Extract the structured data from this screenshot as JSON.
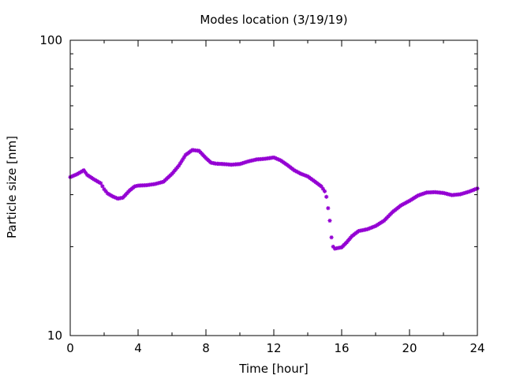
{
  "chart_data": {
    "type": "scatter",
    "title": "Modes location (3/19/19)",
    "xlabel": "Time [hour]",
    "ylabel": "Particle size [nm]",
    "xlim": [
      0,
      24
    ],
    "ylim": [
      10,
      100
    ],
    "yscale": "log",
    "x_ticks": [
      0,
      4,
      8,
      12,
      16,
      20,
      24
    ],
    "x_tick_labels": [
      "0",
      "4",
      "8",
      "12",
      "16",
      "20",
      "24"
    ],
    "y_tick_labels": [
      {
        "value": 100,
        "label": "100"
      },
      {
        "value": 10,
        "label": "10"
      }
    ],
    "grid": false,
    "series": [
      {
        "color": "#9400d3",
        "marker": "asterisk",
        "x": [
          0.0,
          0.4,
          0.8,
          1.0,
          1.4,
          1.8,
          2.0,
          2.2,
          2.5,
          2.8,
          3.1,
          3.5,
          3.8,
          4.0,
          4.5,
          5.0,
          5.5,
          6.0,
          6.4,
          6.8,
          7.2,
          7.6,
          8.0,
          8.3,
          8.6,
          9.0,
          9.5,
          10.0,
          10.5,
          11.0,
          11.5,
          12.0,
          12.4,
          12.8,
          13.2,
          13.6,
          14.0,
          14.4,
          14.8,
          15.0,
          15.1,
          15.2,
          15.3,
          15.4,
          15.5,
          15.6,
          15.8,
          16.0,
          16.3,
          16.6,
          17.0,
          17.5,
          18.0,
          18.5,
          19.0,
          19.5,
          20.0,
          20.5,
          21.0,
          21.5,
          22.0,
          22.5,
          23.0,
          23.5,
          24.0
        ],
        "y": [
          34.4,
          35.2,
          36.3,
          35.0,
          33.8,
          32.8,
          31.3,
          30.3,
          29.6,
          29.1,
          29.3,
          31.0,
          32.0,
          32.2,
          32.3,
          32.6,
          33.2,
          35.3,
          37.6,
          40.9,
          42.5,
          42.2,
          39.9,
          38.5,
          38.2,
          38.1,
          37.9,
          38.1,
          38.9,
          39.5,
          39.7,
          40.1,
          39.2,
          37.8,
          36.3,
          35.3,
          34.6,
          33.3,
          32.0,
          30.8,
          29.5,
          27.0,
          24.5,
          21.5,
          20.0,
          19.7,
          19.8,
          19.9,
          20.7,
          21.7,
          22.6,
          22.9,
          23.5,
          24.5,
          26.2,
          27.6,
          28.6,
          29.8,
          30.5,
          30.6,
          30.4,
          29.9,
          30.1,
          30.7,
          31.5
        ]
      }
    ]
  }
}
